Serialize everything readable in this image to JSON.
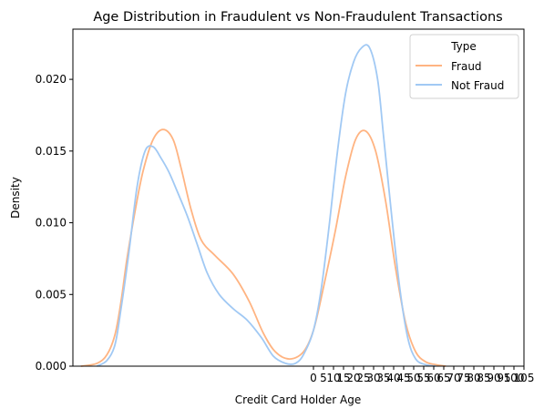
{
  "chart_data": {
    "type": "line",
    "title": "Age Distribution in Fraudulent vs Non-Fraudulent Transactions",
    "xlabel": "Credit Card Holder Age",
    "ylabel": "Density",
    "ylim": [
      0,
      0.0235
    ],
    "xlim": [
      -120,
      105
    ],
    "x_ticks": [
      0,
      5,
      10,
      15,
      20,
      25,
      30,
      35,
      40,
      45,
      50,
      55,
      60,
      65,
      70,
      75,
      80,
      85,
      90,
      95,
      100,
      105
    ],
    "y_ticks": [
      "0.000",
      "0.005",
      "0.010",
      "0.015",
      "0.020"
    ],
    "grid": false,
    "legend": {
      "title": "Type",
      "placement": "top-right"
    },
    "series": [
      {
        "name": "Fraud",
        "color": "#ffb482",
        "x": [
          -116,
          -108,
          -103,
          -99,
          -96,
          -93,
          -89,
          -85,
          -80,
          -75,
          -70,
          -66,
          -61,
          -56,
          -49,
          -40,
          -32,
          -25,
          -19,
          -12,
          -5,
          0,
          5,
          11,
          16,
          21,
          26,
          31,
          36,
          41,
          46,
          51,
          56,
          61,
          66
        ],
        "y": [
          0.0,
          0.0002,
          0.0008,
          0.0022,
          0.0045,
          0.0075,
          0.0108,
          0.0136,
          0.0158,
          0.0165,
          0.0158,
          0.0138,
          0.0109,
          0.0088,
          0.0077,
          0.0064,
          0.0045,
          0.0023,
          0.001,
          0.0005,
          0.001,
          0.0025,
          0.0055,
          0.0095,
          0.0132,
          0.0158,
          0.0164,
          0.015,
          0.0115,
          0.0068,
          0.003,
          0.001,
          0.0003,
          0.0001,
          0.0
        ]
      },
      {
        "name": "Not Fraud",
        "color": "#a1c9f4",
        "x": [
          -108,
          -103,
          -99,
          -96,
          -92,
          -88,
          -84,
          -80,
          -76,
          -72,
          -68,
          -63,
          -58,
          -53,
          -47,
          -40,
          -33,
          -26,
          -20,
          -14,
          -9,
          -5,
          0,
          4,
          8,
          12,
          16,
          20,
          24,
          28,
          32,
          35,
          39,
          43,
          47,
          51,
          56,
          61
        ],
        "y": [
          0.0,
          0.0004,
          0.0015,
          0.004,
          0.008,
          0.0125,
          0.015,
          0.0153,
          0.0145,
          0.0135,
          0.0122,
          0.0105,
          0.0085,
          0.0065,
          0.005,
          0.004,
          0.0032,
          0.002,
          0.0007,
          0.0002,
          0.0002,
          0.0008,
          0.0025,
          0.0055,
          0.01,
          0.015,
          0.019,
          0.0212,
          0.0222,
          0.0222,
          0.02,
          0.016,
          0.0105,
          0.0055,
          0.002,
          0.0005,
          0.0001,
          0.0
        ]
      }
    ]
  }
}
